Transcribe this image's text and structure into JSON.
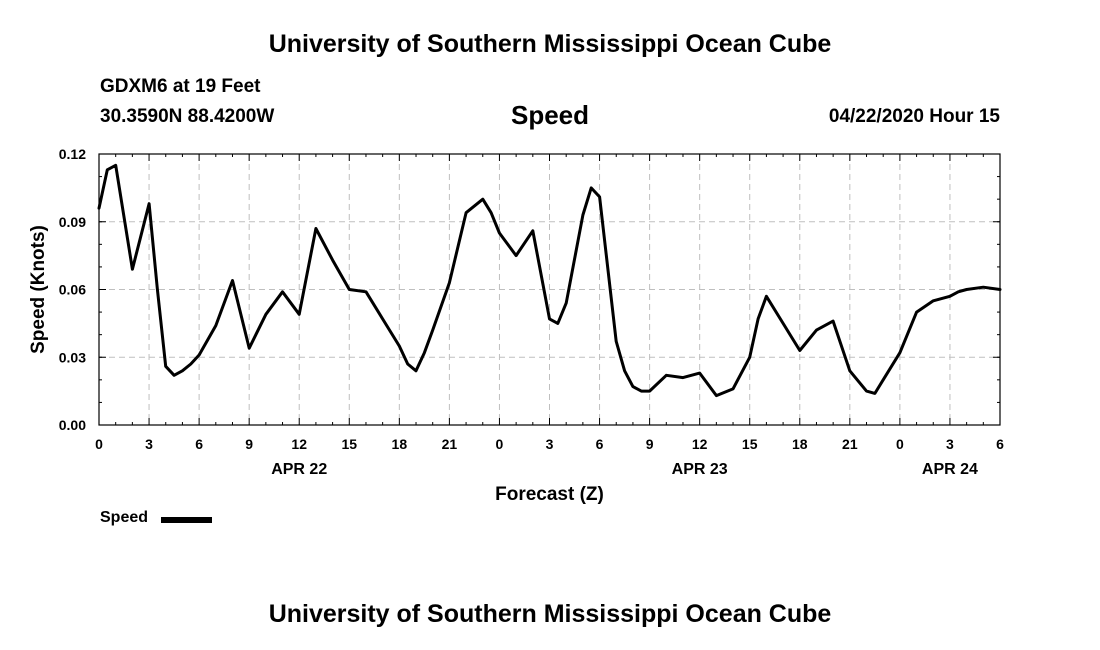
{
  "header": {
    "top_title": "University of Southern Mississippi Ocean Cube",
    "station": "GDXM6 at 19 Feet",
    "coords": "30.3590N 88.4200W",
    "run_time": "04/22/2020 Hour 15",
    "bottom_title": "University of Southern Mississippi Ocean Cube"
  },
  "legend": {
    "label": "Speed"
  },
  "chart_data": {
    "type": "line",
    "title": "Speed",
    "xlabel": "Forecast (Z)",
    "ylabel": "Speed (Knots)",
    "x_unit": "forecast hour (0 = 00Z Apr 22)",
    "xlim": [
      0,
      54
    ],
    "ylim": [
      0,
      0.12
    ],
    "grid": true,
    "line_color": "#000000",
    "grid_color": "#bfbfbf",
    "x_ticks": [
      0,
      3,
      6,
      9,
      12,
      15,
      18,
      21,
      24,
      27,
      30,
      33,
      36,
      39,
      42,
      45,
      48,
      51,
      54
    ],
    "x_tick_labels": [
      "0",
      "3",
      "6",
      "9",
      "12",
      "15",
      "18",
      "21",
      "0",
      "3",
      "6",
      "9",
      "12",
      "15",
      "18",
      "21",
      "0",
      "3",
      "6"
    ],
    "y_ticks": [
      0,
      0.03,
      0.06,
      0.09,
      0.12
    ],
    "y_tick_labels": [
      "0.00",
      "0.03",
      "0.06",
      "0.09",
      "0.12"
    ],
    "date_labels": [
      {
        "x": 12,
        "label": "APR 22"
      },
      {
        "x": 36,
        "label": "APR 23"
      },
      {
        "x": 51,
        "label": "APR 24"
      }
    ],
    "series": [
      {
        "name": "Speed",
        "x": [
          0,
          0.5,
          1,
          2,
          3,
          3.5,
          4,
          4.5,
          5,
          5.5,
          6,
          7,
          8,
          9,
          10,
          11,
          12,
          13,
          14,
          15,
          16,
          17,
          18,
          18.5,
          19,
          19.5,
          20,
          21,
          22,
          23,
          23.5,
          24,
          25,
          26,
          27,
          27.5,
          28,
          29,
          29.5,
          30,
          31,
          31.5,
          32,
          32.5,
          33,
          34,
          35,
          36,
          37,
          38,
          39,
          39.5,
          40,
          41,
          41.5,
          42,
          43,
          44,
          45,
          46,
          46.5,
          47,
          48,
          49,
          50,
          51,
          51.5,
          52,
          53,
          54
        ],
        "y": [
          0.096,
          0.113,
          0.115,
          0.069,
          0.098,
          0.06,
          0.026,
          0.022,
          0.024,
          0.027,
          0.031,
          0.044,
          0.064,
          0.034,
          0.049,
          0.059,
          0.049,
          0.087,
          0.073,
          0.06,
          0.059,
          0.047,
          0.035,
          0.027,
          0.024,
          0.032,
          0.042,
          0.063,
          0.094,
          0.1,
          0.094,
          0.085,
          0.075,
          0.086,
          0.047,
          0.045,
          0.054,
          0.093,
          0.105,
          0.101,
          0.037,
          0.024,
          0.017,
          0.015,
          0.015,
          0.022,
          0.021,
          0.023,
          0.013,
          0.016,
          0.03,
          0.047,
          0.057,
          0.045,
          0.039,
          0.033,
          0.042,
          0.046,
          0.024,
          0.015,
          0.014,
          0.02,
          0.032,
          0.05,
          0.055,
          0.057,
          0.059,
          0.06,
          0.061,
          0.06
        ]
      }
    ]
  }
}
